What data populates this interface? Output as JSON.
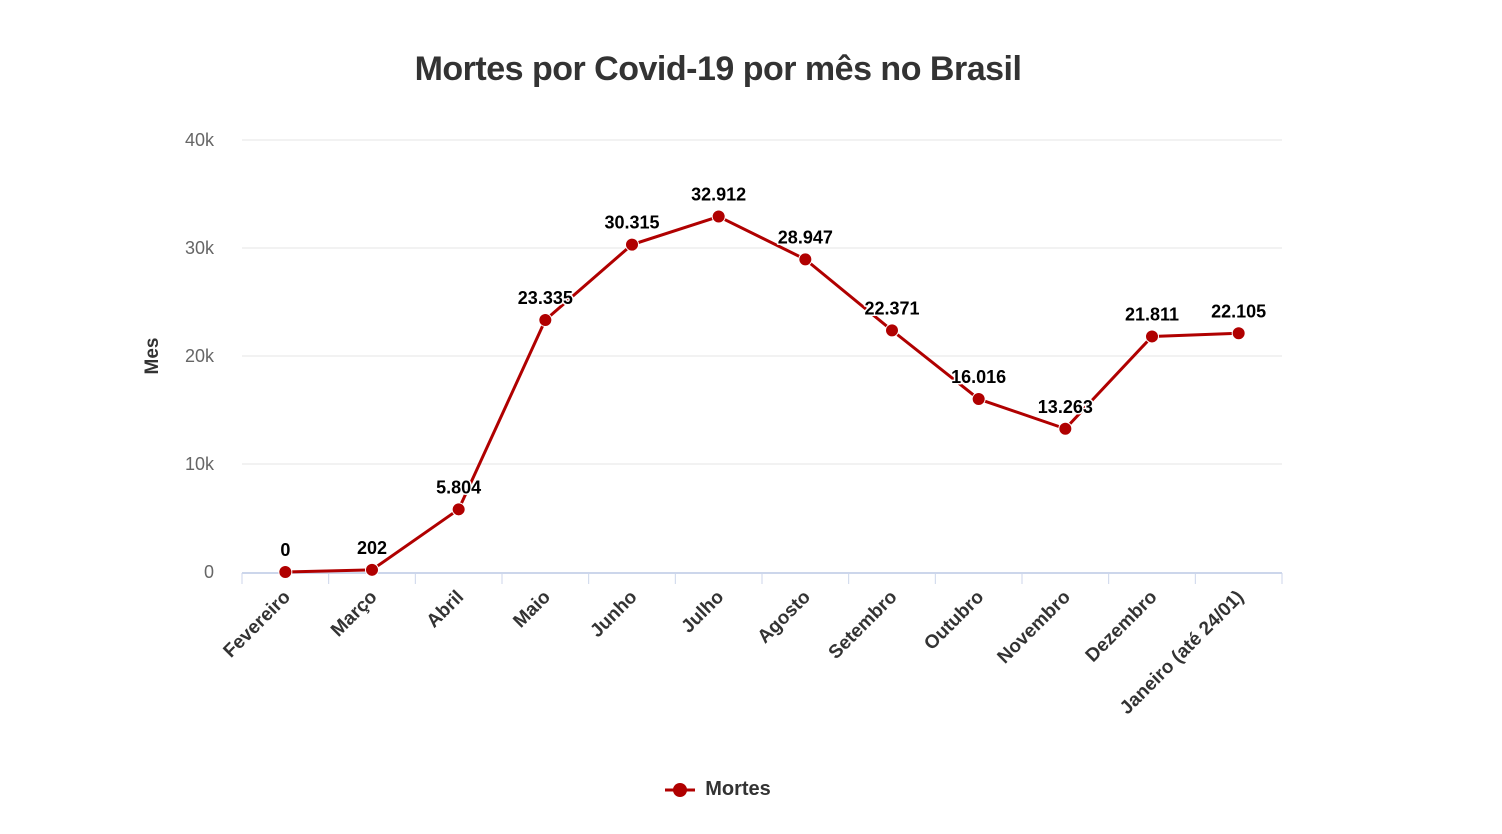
{
  "chart_data": {
    "type": "line",
    "title": "Mortes por Covid-19 por mês no Brasil",
    "xlabel": "",
    "ylabel": "Mes",
    "ylim": [
      0,
      40000
    ],
    "yticks": [
      0,
      10000,
      20000,
      30000,
      40000
    ],
    "ytick_labels": [
      "0",
      "10k",
      "20k",
      "30k",
      "40k"
    ],
    "categories": [
      "Fevereiro",
      "Março",
      "Abril",
      "Maio",
      "Junho",
      "Julho",
      "Agosto",
      "Setembro",
      "Outubro",
      "Novembro",
      "Dezembro",
      "Janeiro (até 24/01)"
    ],
    "series": [
      {
        "name": "Mortes",
        "color": "#b00000",
        "values": [
          0,
          202,
          5804,
          23335,
          30315,
          32912,
          28947,
          22371,
          16016,
          13263,
          21811,
          22105
        ],
        "labels": [
          "0",
          "202",
          "5.804",
          "23.335",
          "30.315",
          "32.912",
          "28.947",
          "22.371",
          "16.016",
          "13.263",
          "21.811",
          "22.105"
        ]
      }
    ],
    "grid": true,
    "legend_position": "bottom-center"
  }
}
